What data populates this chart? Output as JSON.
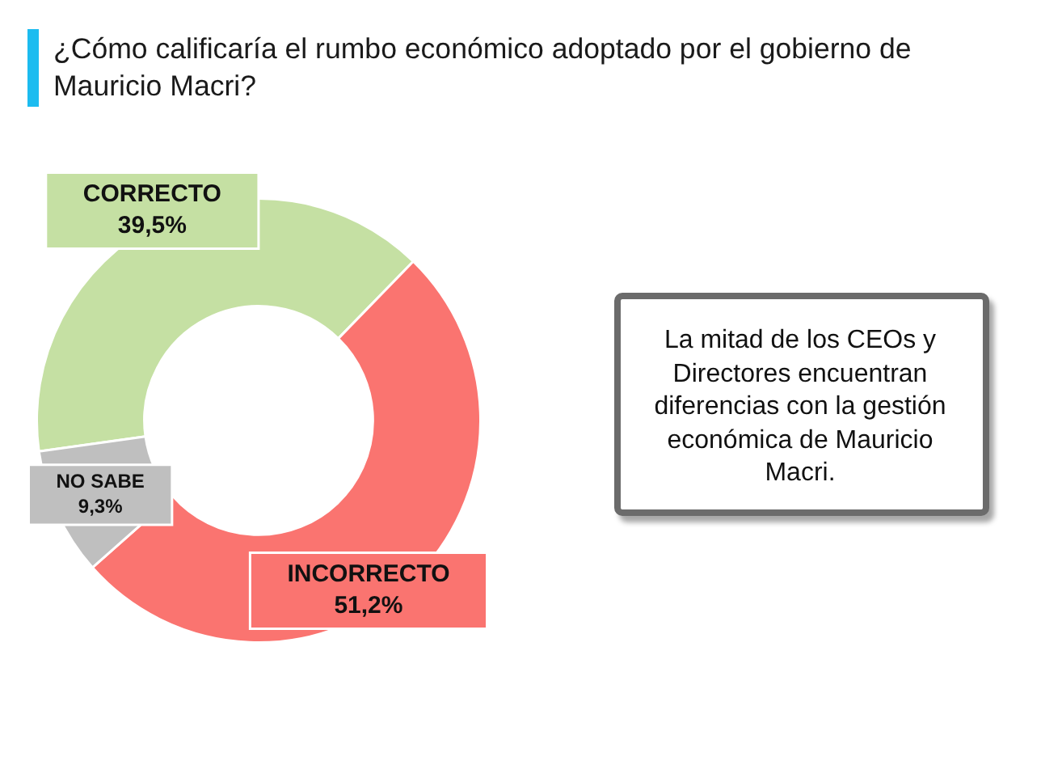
{
  "chart_data": {
    "type": "donut",
    "title": "¿Cómo calificaría el rumbo económico adoptado por el gobierno de Mauricio Macri?",
    "categories": [
      "CORRECTO",
      "INCORRECTO",
      "NO SABE"
    ],
    "values": [
      39.5,
      51.2,
      9.3
    ],
    "colors": [
      "#c5e0a3",
      "#fa7470",
      "#bfbfbf"
    ],
    "value_labels": [
      "39,5%",
      "51,2%",
      "9,3%"
    ],
    "annotations": [
      "La mitad de los CEOs y Directores encuentran diferencias con la gestión económica de Mauricio Macri."
    ]
  }
}
